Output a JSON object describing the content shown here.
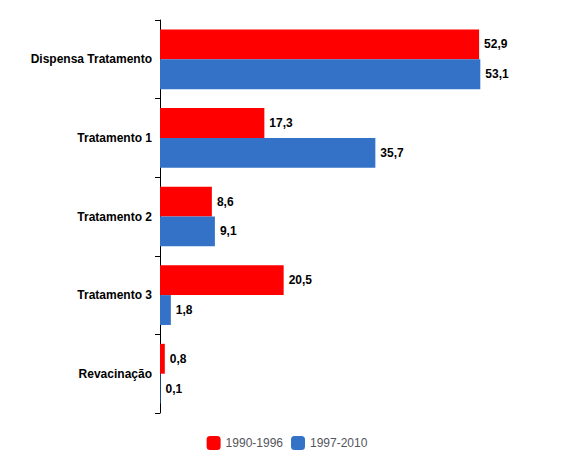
{
  "chart_data": {
    "type": "bar",
    "orientation": "horizontal",
    "categories": [
      "Revacinação",
      "Tratamento 3",
      "Tratamento 2",
      "Tratamento 1",
      "Dispensa Tratamento"
    ],
    "series": [
      {
        "name": "1990-1996",
        "color": "#FF0000",
        "values": [
          0.8,
          20.5,
          8.6,
          17.3,
          52.9
        ],
        "value_labels": [
          "0,8",
          "20,5",
          "8,6",
          "17,3",
          "52,9"
        ]
      },
      {
        "name": "1997-2010",
        "color": "#3472C8",
        "values": [
          0.1,
          1.8,
          9.1,
          35.7,
          53.1
        ],
        "value_labels": [
          "0,1",
          "1,8",
          "9,1",
          "35,7",
          "53,1"
        ]
      }
    ],
    "xlim": [
      0,
      62
    ],
    "grid": false,
    "legend": "bottom",
    "data_labels": true,
    "tick_labels": "y"
  }
}
